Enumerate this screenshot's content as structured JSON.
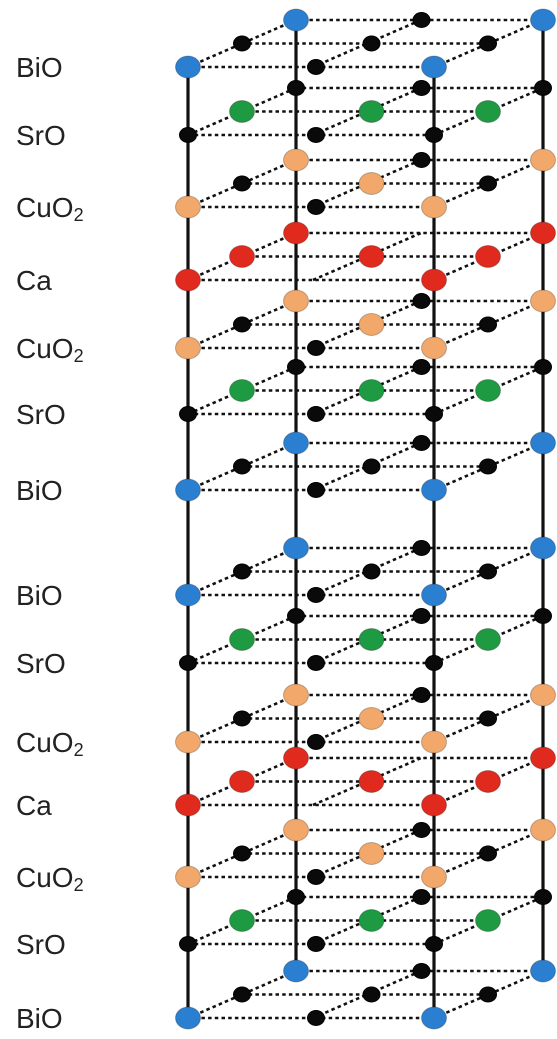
{
  "colors": {
    "Bi": "#2a7fd1",
    "Sr": "#1e9a43",
    "Cu": "#f2a86a",
    "Ca": "#e02a1e",
    "O": "#0a0a0a",
    "line": "#111111",
    "label": "#222222"
  },
  "layers": [
    {
      "label": "BiO",
      "main": "BiO",
      "sub": "",
      "cation": "Bi"
    },
    {
      "label": "SrO",
      "main": "SrO",
      "sub": "",
      "cation": "Sr"
    },
    {
      "label": "CuO2",
      "main": "CuO",
      "sub": "2",
      "cation": "Cu"
    },
    {
      "label": "Ca",
      "main": "Ca",
      "sub": "",
      "cation": "Ca"
    },
    {
      "label": "CuO2",
      "main": "CuO",
      "sub": "2",
      "cation": "Cu"
    },
    {
      "label": "SrO",
      "main": "SrO",
      "sub": "",
      "cation": "Sr"
    },
    {
      "label": "BiO",
      "main": "BiO",
      "sub": "",
      "cation": "Bi"
    },
    {
      "label": "BiO",
      "main": "BiO",
      "sub": "",
      "cation": "Bi"
    },
    {
      "label": "SrO",
      "main": "SrO",
      "sub": "",
      "cation": "Sr"
    },
    {
      "label": "CuO2",
      "main": "CuO",
      "sub": "2",
      "cation": "Cu"
    },
    {
      "label": "Ca",
      "main": "Ca",
      "sub": "",
      "cation": "Ca"
    },
    {
      "label": "CuO2",
      "main": "CuO",
      "sub": "2",
      "cation": "Cu"
    },
    {
      "label": "SrO",
      "main": "SrO",
      "sub": "",
      "cation": "Sr"
    },
    {
      "label": "BiO",
      "main": "BiO",
      "sub": "",
      "cation": "Bi"
    }
  ]
}
